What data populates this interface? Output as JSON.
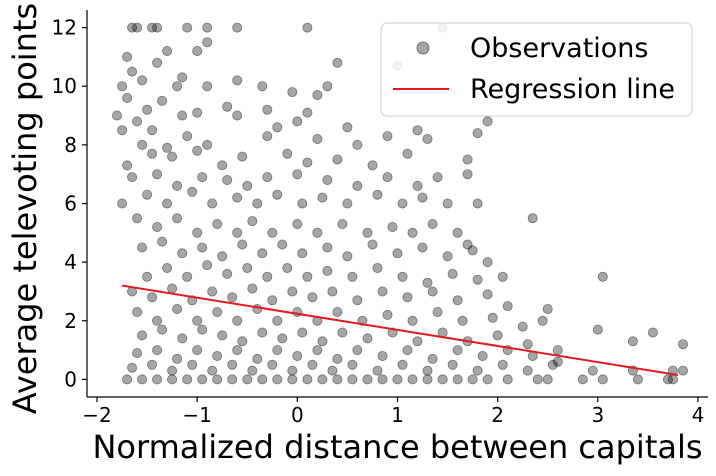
{
  "chart_data": {
    "type": "scatter",
    "xlabel": "Normalized distance between capitals",
    "ylabel": "Average televoting points",
    "xlim": [
      -2.1,
      4.1
    ],
    "ylim": [
      -0.6,
      12.6
    ],
    "xticks": [
      -2,
      -1,
      0,
      1,
      2,
      3,
      4
    ],
    "xtick_labels": [
      "−2",
      "−1",
      "0",
      "1",
      "2",
      "3",
      "4"
    ],
    "yticks": [
      0,
      2,
      4,
      6,
      8,
      10,
      12
    ],
    "ytick_labels": [
      "0",
      "2",
      "4",
      "6",
      "8",
      "10",
      "12"
    ],
    "grid": false,
    "legend": {
      "placement": "top-right",
      "entries": [
        "Observations",
        "Regression line"
      ]
    },
    "colors": {
      "points": "#000000",
      "points_alpha": 0.35,
      "regression": "#e41a1c"
    },
    "series": [
      {
        "name": "Observations",
        "kind": "scatter",
        "points": [
          [
            -1.65,
            12
          ],
          [
            -1.6,
            12
          ],
          [
            -1.45,
            12
          ],
          [
            -1.4,
            12
          ],
          [
            -1.1,
            12
          ],
          [
            -0.9,
            12
          ],
          [
            -0.6,
            12
          ],
          [
            0.1,
            12
          ],
          [
            1.45,
            12
          ],
          [
            -1.7,
            11
          ],
          [
            -1.3,
            11.2
          ],
          [
            -0.9,
            11.5
          ],
          [
            -1.0,
            11.2
          ],
          [
            -1.65,
            10.5
          ],
          [
            -1.4,
            10.8
          ],
          [
            -1.15,
            10.3
          ],
          [
            -0.6,
            10.2
          ],
          [
            0.4,
            10.8
          ],
          [
            1.0,
            10.7
          ],
          [
            -1.75,
            10
          ],
          [
            -1.55,
            10.2
          ],
          [
            -1.2,
            10
          ],
          [
            -0.9,
            10
          ],
          [
            -0.35,
            10
          ],
          [
            -0.05,
            9.8
          ],
          [
            0.2,
            9.7
          ],
          [
            0.3,
            10
          ],
          [
            -1.7,
            9.6
          ],
          [
            -1.5,
            9.2
          ],
          [
            -1.35,
            9.5
          ],
          [
            -1.0,
            9.1
          ],
          [
            -0.7,
            9.3
          ],
          [
            -0.3,
            9.2
          ],
          [
            0.1,
            9.1
          ],
          [
            -1.8,
            9.0
          ],
          [
            -1.6,
            8.8
          ],
          [
            -1.45,
            8.5
          ],
          [
            -1.15,
            9.0
          ],
          [
            -0.6,
            9.0
          ],
          [
            -0.2,
            8.6
          ],
          [
            0.0,
            8.8
          ],
          [
            0.5,
            8.6
          ],
          [
            1.2,
            8.5
          ],
          [
            1.9,
            8.8
          ],
          [
            -1.75,
            8.5
          ],
          [
            -1.55,
            8.0
          ],
          [
            -1.3,
            7.9
          ],
          [
            -1.1,
            8.3
          ],
          [
            -0.9,
            8.0
          ],
          [
            -0.3,
            8.3
          ],
          [
            0.2,
            8.2
          ],
          [
            0.6,
            8.0
          ],
          [
            0.9,
            8.3
          ],
          [
            1.3,
            8.2
          ],
          [
            1.8,
            8.4
          ],
          [
            -1.7,
            7.3
          ],
          [
            -1.45,
            7.7
          ],
          [
            -1.25,
            7.6
          ],
          [
            -1.0,
            7.8
          ],
          [
            -0.75,
            7.3
          ],
          [
            -0.55,
            7.6
          ],
          [
            -0.1,
            7.7
          ],
          [
            0.1,
            7.4
          ],
          [
            0.4,
            7.5
          ],
          [
            0.75,
            7.3
          ],
          [
            1.1,
            7.7
          ],
          [
            1.7,
            7.5
          ],
          [
            -1.65,
            6.9
          ],
          [
            -1.4,
            7.0
          ],
          [
            -1.2,
            6.6
          ],
          [
            -0.95,
            6.9
          ],
          [
            -0.7,
            6.8
          ],
          [
            -0.5,
            6.6
          ],
          [
            -0.3,
            6.9
          ],
          [
            0.0,
            7.0
          ],
          [
            0.3,
            6.8
          ],
          [
            0.6,
            6.6
          ],
          [
            0.9,
            6.9
          ],
          [
            1.2,
            6.6
          ],
          [
            1.4,
            6.9
          ],
          [
            1.7,
            7.0
          ],
          [
            -1.75,
            6.0
          ],
          [
            -1.5,
            6.3
          ],
          [
            -1.3,
            6.0
          ],
          [
            -1.05,
            6.4
          ],
          [
            -0.85,
            6.0
          ],
          [
            -0.6,
            6.2
          ],
          [
            -0.4,
            6.0
          ],
          [
            -0.2,
            6.3
          ],
          [
            0.05,
            6.0
          ],
          [
            0.25,
            6.2
          ],
          [
            0.5,
            6.0
          ],
          [
            0.8,
            6.3
          ],
          [
            1.05,
            6.0
          ],
          [
            1.25,
            6.2
          ],
          [
            1.5,
            6.0
          ],
          [
            1.8,
            6.0
          ],
          [
            2.35,
            5.5
          ],
          [
            -1.6,
            5.5
          ],
          [
            -1.4,
            5.2
          ],
          [
            -1.2,
            5.5
          ],
          [
            -1.0,
            5.0
          ],
          [
            -0.8,
            5.3
          ],
          [
            -0.6,
            5.0
          ],
          [
            -0.45,
            5.4
          ],
          [
            -0.25,
            5.0
          ],
          [
            0.0,
            5.3
          ],
          [
            0.2,
            5.0
          ],
          [
            0.45,
            5.3
          ],
          [
            0.7,
            5.0
          ],
          [
            0.95,
            5.2
          ],
          [
            1.15,
            5.0
          ],
          [
            1.35,
            5.3
          ],
          [
            1.6,
            5.0
          ],
          [
            1.7,
            4.6
          ],
          [
            -1.55,
            4.5
          ],
          [
            -1.35,
            4.7
          ],
          [
            -1.15,
            4.3
          ],
          [
            -0.95,
            4.5
          ],
          [
            -0.75,
            4.2
          ],
          [
            -0.55,
            4.6
          ],
          [
            -0.35,
            4.3
          ],
          [
            -0.15,
            4.6
          ],
          [
            0.05,
            4.3
          ],
          [
            0.3,
            4.5
          ],
          [
            0.5,
            4.2
          ],
          [
            0.75,
            4.6
          ],
          [
            1.0,
            4.3
          ],
          [
            1.25,
            4.5
          ],
          [
            1.5,
            4.2
          ],
          [
            1.75,
            4.4
          ],
          [
            1.9,
            4.0
          ],
          [
            -1.5,
            3.5
          ],
          [
            -1.3,
            3.8
          ],
          [
            -1.1,
            3.5
          ],
          [
            -0.9,
            3.9
          ],
          [
            -0.7,
            3.6
          ],
          [
            -0.5,
            3.8
          ],
          [
            -0.3,
            3.5
          ],
          [
            -0.1,
            3.8
          ],
          [
            0.1,
            3.5
          ],
          [
            0.3,
            3.7
          ],
          [
            0.55,
            3.5
          ],
          [
            0.8,
            3.8
          ],
          [
            1.05,
            3.5
          ],
          [
            1.3,
            3.3
          ],
          [
            1.55,
            3.6
          ],
          [
            1.8,
            3.4
          ],
          [
            2.05,
            3.5
          ],
          [
            3.05,
            3.5
          ],
          [
            -1.65,
            3.0
          ],
          [
            -1.45,
            2.8
          ],
          [
            -1.25,
            3.1
          ],
          [
            -1.05,
            2.7
          ],
          [
            -0.85,
            3.0
          ],
          [
            -0.65,
            2.8
          ],
          [
            -0.45,
            3.1
          ],
          [
            -0.25,
            2.7
          ],
          [
            -0.05,
            3.0
          ],
          [
            0.15,
            2.8
          ],
          [
            0.35,
            3.0
          ],
          [
            0.6,
            2.7
          ],
          [
            0.85,
            3.0
          ],
          [
            1.1,
            2.8
          ],
          [
            1.35,
            3.0
          ],
          [
            1.6,
            2.7
          ],
          [
            1.9,
            2.9
          ],
          [
            2.1,
            2.5
          ],
          [
            -1.6,
            2.3
          ],
          [
            -1.4,
            2.0
          ],
          [
            -1.2,
            2.4
          ],
          [
            -1.0,
            2.0
          ],
          [
            -0.8,
            2.3
          ],
          [
            -0.6,
            2.0
          ],
          [
            -0.4,
            2.4
          ],
          [
            -0.2,
            2.0
          ],
          [
            0.0,
            2.3
          ],
          [
            0.2,
            2.0
          ],
          [
            0.4,
            2.3
          ],
          [
            0.65,
            2.0
          ],
          [
            0.9,
            2.2
          ],
          [
            1.15,
            2.0
          ],
          [
            1.4,
            2.3
          ],
          [
            1.65,
            2.0
          ],
          [
            1.95,
            2.1
          ],
          [
            2.25,
            1.8
          ],
          [
            2.5,
            2.4
          ],
          [
            2.45,
            2.0
          ],
          [
            3.0,
            1.7
          ],
          [
            -1.55,
            1.5
          ],
          [
            -1.35,
            1.7
          ],
          [
            -1.15,
            1.4
          ],
          [
            -0.95,
            1.7
          ],
          [
            -0.75,
            1.5
          ],
          [
            -0.55,
            1.3
          ],
          [
            -0.35,
            1.6
          ],
          [
            -0.15,
            1.4
          ],
          [
            0.05,
            1.6
          ],
          [
            0.25,
            1.3
          ],
          [
            0.45,
            1.6
          ],
          [
            0.7,
            1.4
          ],
          [
            0.95,
            1.6
          ],
          [
            1.2,
            1.3
          ],
          [
            1.45,
            1.6
          ],
          [
            1.7,
            1.3
          ],
          [
            2.0,
            1.5
          ],
          [
            2.3,
            1.2
          ],
          [
            2.6,
            1.0
          ],
          [
            3.35,
            1.3
          ],
          [
            3.55,
            1.6
          ],
          [
            3.85,
            1.2
          ],
          [
            -1.6,
            0.9
          ],
          [
            -1.4,
            1.0
          ],
          [
            -1.2,
            0.7
          ],
          [
            -1.0,
            1.0
          ],
          [
            -0.8,
            0.8
          ],
          [
            -0.6,
            1.0
          ],
          [
            -0.4,
            0.7
          ],
          [
            -0.2,
            1.0
          ],
          [
            0.0,
            0.8
          ],
          [
            0.2,
            1.0
          ],
          [
            0.4,
            0.7
          ],
          [
            0.6,
            1.0
          ],
          [
            0.85,
            0.8
          ],
          [
            1.1,
            1.0
          ],
          [
            1.35,
            0.7
          ],
          [
            1.6,
            1.0
          ],
          [
            1.85,
            0.8
          ],
          [
            2.1,
            1.0
          ],
          [
            2.35,
            0.8
          ],
          [
            2.6,
            0.6
          ],
          [
            -1.65,
            0.4
          ],
          [
            -1.45,
            0.5
          ],
          [
            -1.25,
            0.3
          ],
          [
            -1.05,
            0.5
          ],
          [
            -0.85,
            0.3
          ],
          [
            -0.65,
            0.5
          ],
          [
            -0.45,
            0.3
          ],
          [
            -0.25,
            0.5
          ],
          [
            -0.05,
            0.3
          ],
          [
            0.15,
            0.5
          ],
          [
            0.35,
            0.3
          ],
          [
            0.55,
            0.5
          ],
          [
            0.8,
            0.3
          ],
          [
            1.05,
            0.5
          ],
          [
            1.3,
            0.3
          ],
          [
            1.55,
            0.5
          ],
          [
            1.8,
            0.3
          ],
          [
            2.05,
            0.5
          ],
          [
            2.3,
            0.3
          ],
          [
            2.55,
            0.5
          ],
          [
            2.95,
            0.3
          ],
          [
            3.35,
            0.3
          ],
          [
            3.75,
            0.3
          ],
          [
            3.85,
            0.3
          ],
          [
            -1.7,
            0
          ],
          [
            -1.55,
            0
          ],
          [
            -1.4,
            0
          ],
          [
            -1.25,
            0
          ],
          [
            -1.1,
            0
          ],
          [
            -0.95,
            0
          ],
          [
            -0.8,
            0
          ],
          [
            -0.65,
            0
          ],
          [
            -0.5,
            0
          ],
          [
            -0.35,
            0
          ],
          [
            -0.2,
            0
          ],
          [
            -0.05,
            0
          ],
          [
            0.1,
            0
          ],
          [
            0.25,
            0
          ],
          [
            0.4,
            0
          ],
          [
            0.55,
            0
          ],
          [
            0.7,
            0
          ],
          [
            0.85,
            0
          ],
          [
            1.0,
            0
          ],
          [
            1.15,
            0
          ],
          [
            1.3,
            0
          ],
          [
            1.45,
            0
          ],
          [
            1.6,
            0
          ],
          [
            1.75,
            0
          ],
          [
            1.9,
            0
          ],
          [
            2.1,
            0
          ],
          [
            2.4,
            0
          ],
          [
            2.5,
            0
          ],
          [
            2.85,
            0
          ],
          [
            3.05,
            0
          ],
          [
            3.4,
            0
          ],
          [
            3.7,
            0
          ],
          [
            3.75,
            0
          ]
        ]
      },
      {
        "name": "Regression line",
        "kind": "line",
        "x": [
          -1.75,
          3.8
        ],
        "y": [
          3.2,
          0.15
        ]
      }
    ]
  }
}
